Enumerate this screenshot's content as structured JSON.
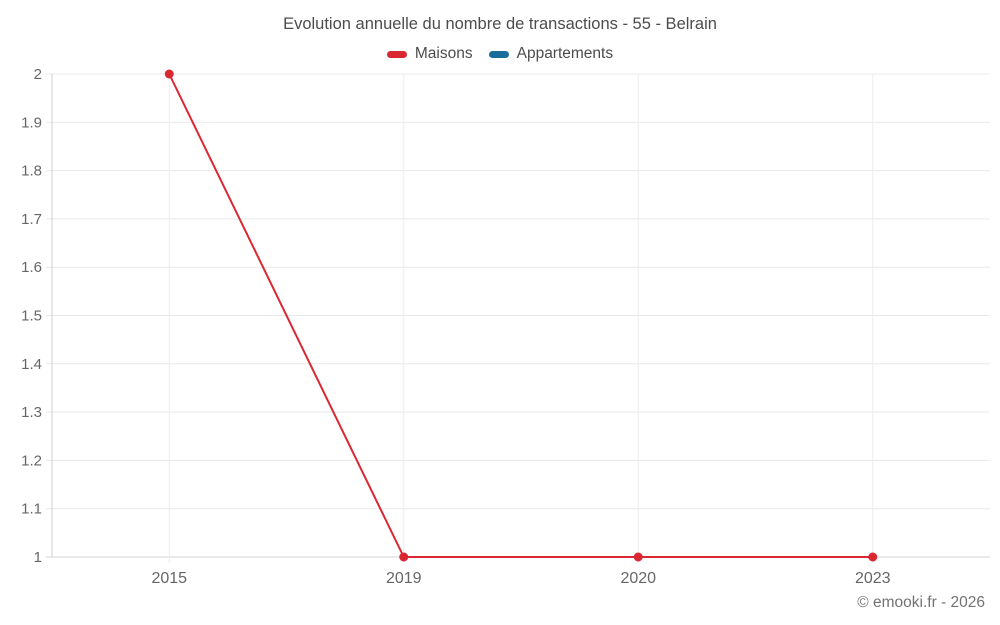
{
  "page": {
    "background": "#ffffff",
    "grid_color": "#e9e9e9",
    "axis_color": "#d6d6d6",
    "tick_text_color": "#666666"
  },
  "chart_data": {
    "type": "line",
    "title": "Evolution annuelle du nombre de transactions - 55 - Belrain",
    "categories": [
      "2015",
      "2019",
      "2020",
      "2023"
    ],
    "series": [
      {
        "name": "Maisons",
        "color": "#da2832",
        "values": [
          2,
          1,
          1,
          1
        ]
      },
      {
        "name": "Appartements",
        "color": "#1a6d9b",
        "values": []
      }
    ],
    "ylim": [
      1,
      2
    ],
    "yticks": [
      2,
      1.9,
      1.8,
      1.7,
      1.6,
      1.5,
      1.4,
      1.3,
      1.2,
      1.1,
      1
    ],
    "xlabel": "",
    "ylabel": "",
    "grid": true,
    "legend_position": "top",
    "footer": "© emooki.fr - 2026"
  }
}
